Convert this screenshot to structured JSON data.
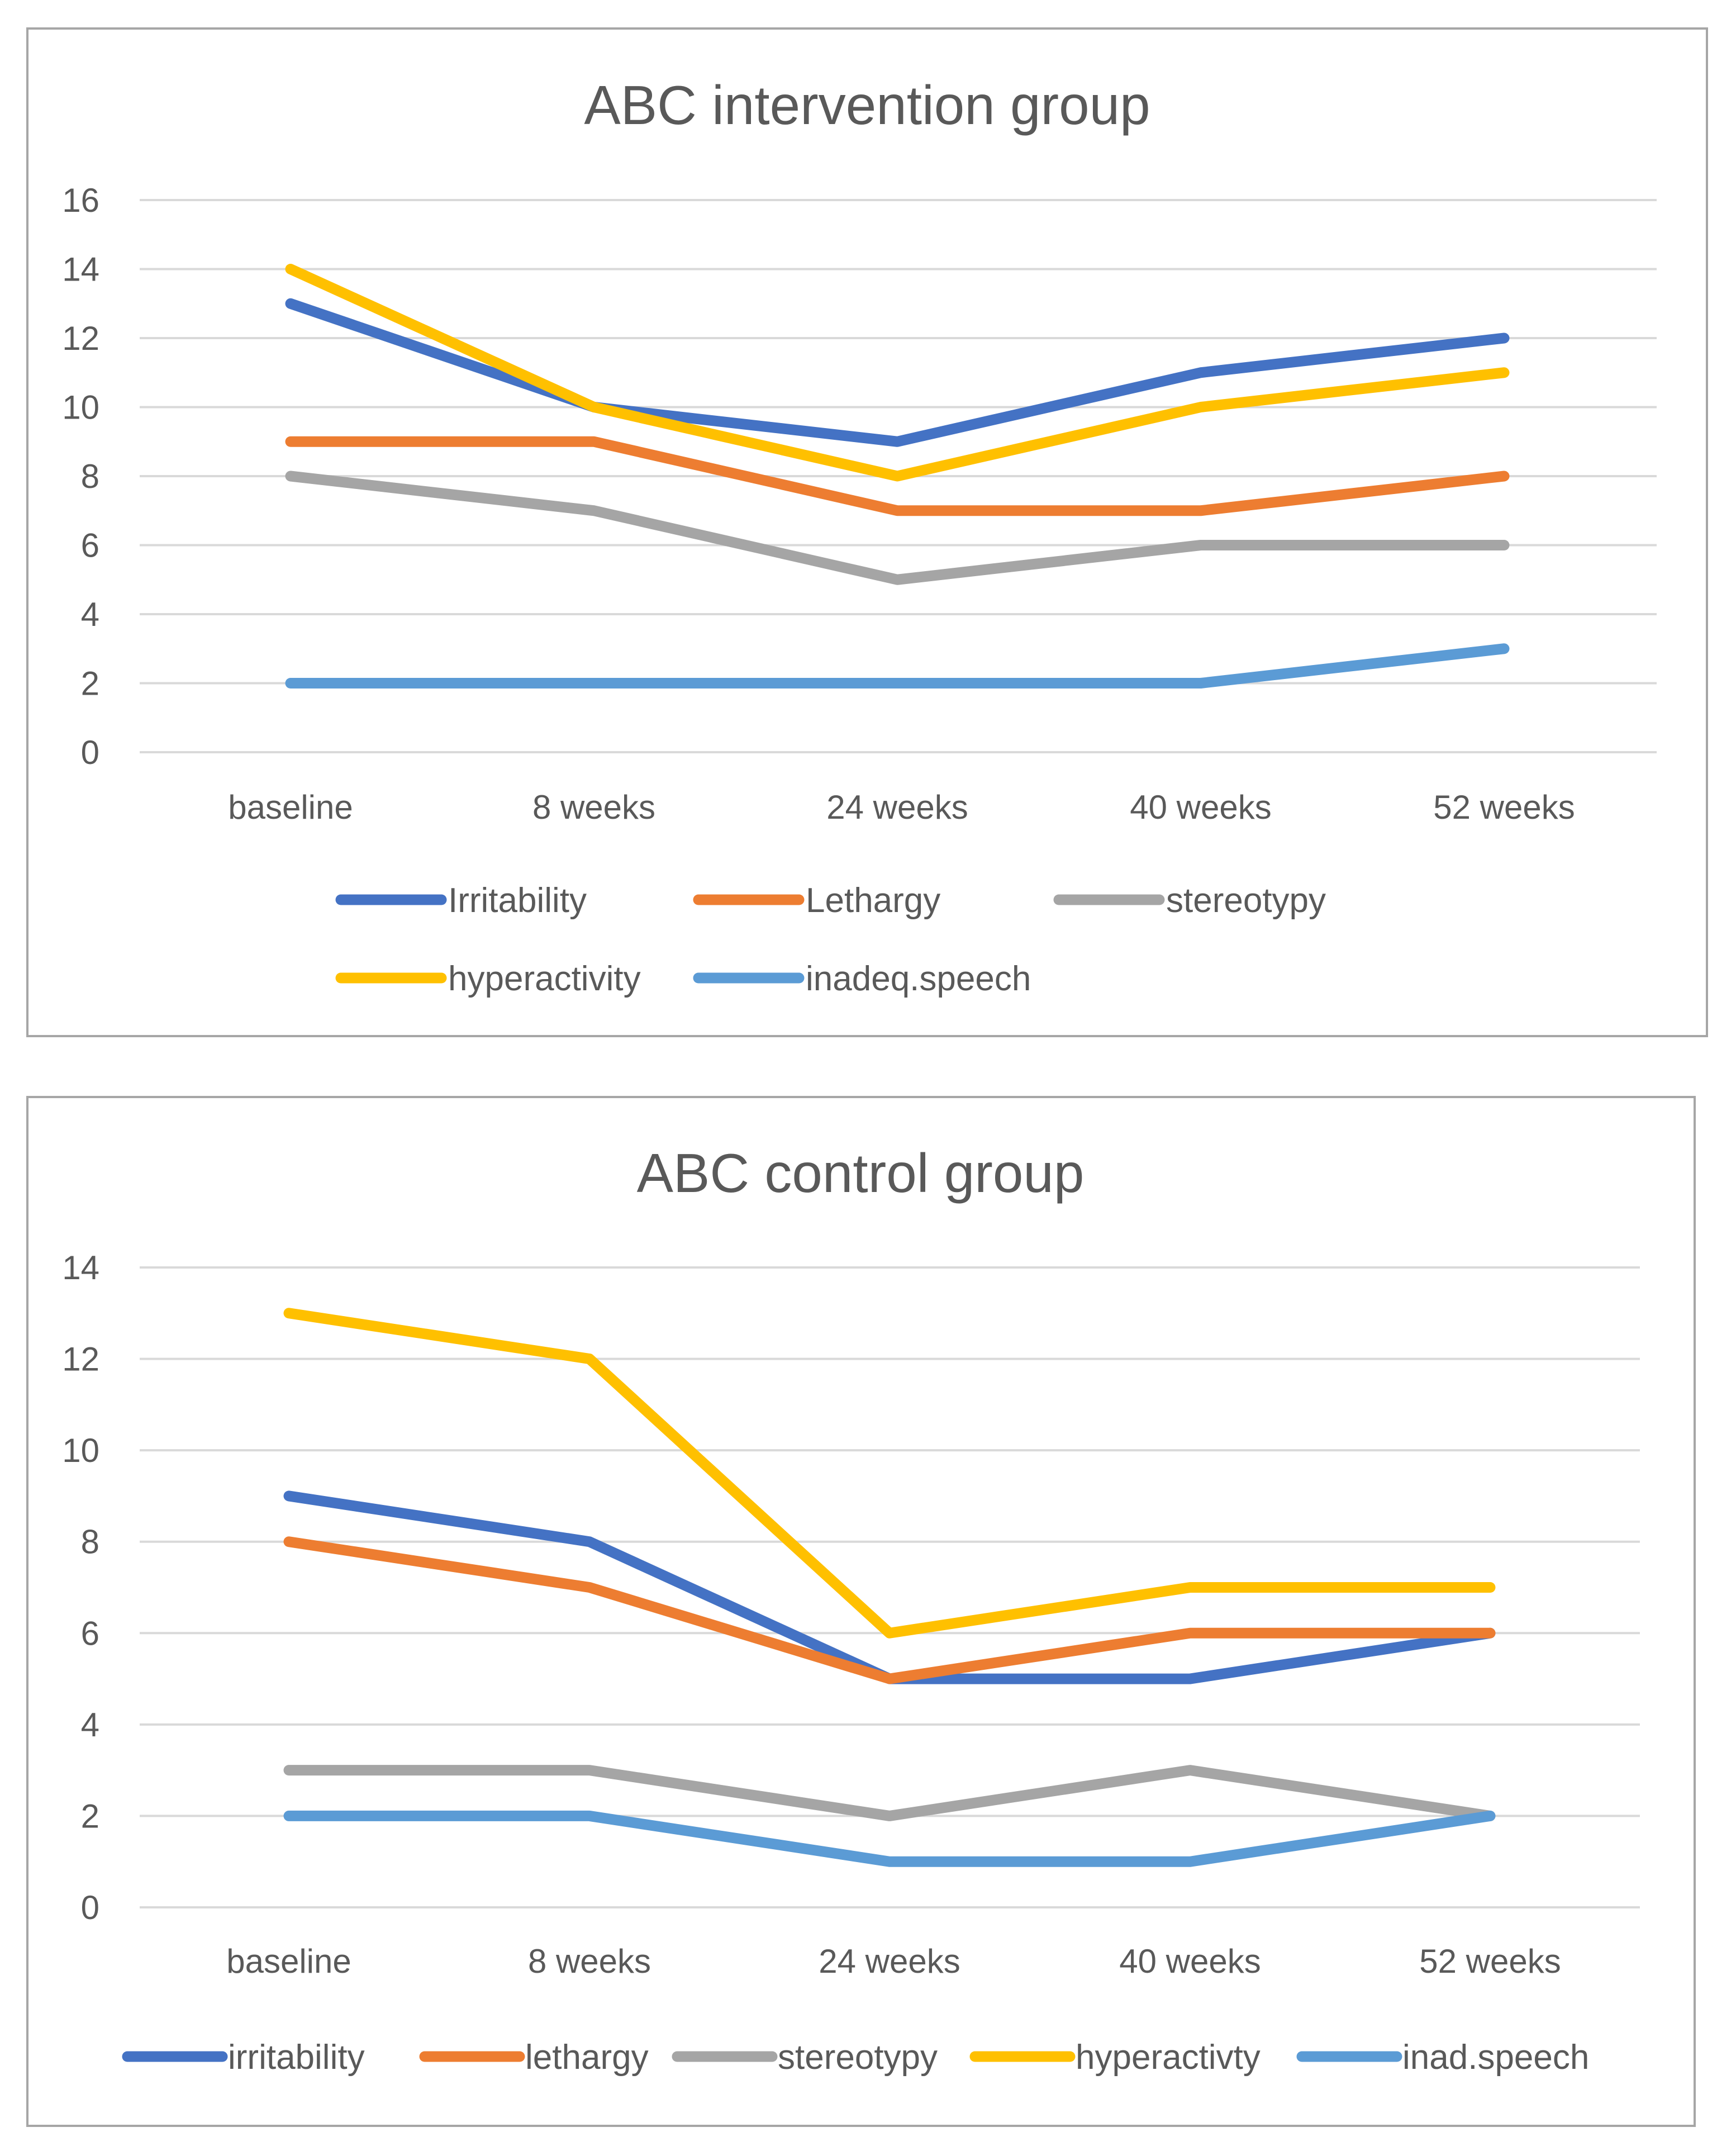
{
  "colors": {
    "blue": "#4472C4",
    "orange": "#ED7D31",
    "gray": "#A5A5A5",
    "gold": "#FFC000",
    "lightblue": "#5B9BD5",
    "grid": "#D9D9D9",
    "text": "#595959",
    "frame": "#A6A6A6"
  },
  "chart_data": [
    {
      "type": "line",
      "title": "ABC intervention group",
      "categories": [
        "baseline",
        "8 weeks",
        "24 weeks",
        "40 weeks",
        "52 weeks"
      ],
      "ylim": [
        0,
        16
      ],
      "yticks": [
        "0",
        "2",
        "4",
        "6",
        "8",
        "10",
        "12",
        "14",
        "16"
      ],
      "grid": true,
      "legend_position": "bottom",
      "xlabel": "",
      "ylabel": "",
      "series": [
        {
          "name": "Irritability",
          "color": "#4472C4",
          "values": [
            13,
            10,
            9,
            11,
            12
          ]
        },
        {
          "name": "Lethargy",
          "color": "#ED7D31",
          "values": [
            9,
            9,
            7,
            7,
            8
          ]
        },
        {
          "name": "stereotypy",
          "color": "#A5A5A5",
          "values": [
            8,
            7,
            5,
            6,
            6
          ]
        },
        {
          "name": "hyperactivity",
          "color": "#FFC000",
          "values": [
            14,
            10,
            8,
            10,
            11
          ]
        },
        {
          "name": "inadeq.speech",
          "color": "#5B9BD5",
          "values": [
            2,
            2,
            2,
            2,
            3
          ]
        }
      ]
    },
    {
      "type": "line",
      "title": "ABC control group",
      "categories": [
        "baseline",
        "8 weeks",
        "24 weeks",
        "40 weeks",
        "52 weeks"
      ],
      "ylim": [
        0,
        14
      ],
      "yticks": [
        "0",
        "2",
        "4",
        "6",
        "8",
        "10",
        "12",
        "14"
      ],
      "grid": true,
      "legend_position": "bottom",
      "xlabel": "",
      "ylabel": "",
      "series": [
        {
          "name": "irritability",
          "color": "#4472C4",
          "values": [
            9,
            8,
            5,
            5,
            6
          ]
        },
        {
          "name": "lethargy",
          "color": "#ED7D31",
          "values": [
            8,
            7,
            5,
            6,
            6
          ]
        },
        {
          "name": "stereotypy",
          "color": "#A5A5A5",
          "values": [
            3,
            3,
            2,
            3,
            2
          ]
        },
        {
          "name": "hyperactivty",
          "color": "#FFC000",
          "values": [
            13,
            12,
            6,
            7,
            7
          ]
        },
        {
          "name": "inad.speech",
          "color": "#5B9BD5",
          "values": [
            2,
            2,
            1,
            1,
            2
          ]
        }
      ]
    }
  ]
}
